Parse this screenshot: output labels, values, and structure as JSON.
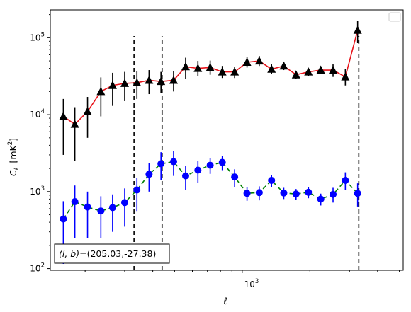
{
  "chart_data": {
    "type": "scatter",
    "xlabel": "ℓ",
    "ylabel_main": "C",
    "ylabel_sub": "ℓ",
    "ylabel_units": "[mK",
    "ylabel_sup": "2",
    "ylabel_close": "]",
    "xscale": "log",
    "yscale": "log",
    "xlim": [
      140,
      5200
    ],
    "ylim": [
      95,
      230000
    ],
    "xtick_label": "10",
    "xtick_label_exp": "3",
    "ytick_labels": [
      {
        "value": 100,
        "base": "10",
        "exp": "2"
      },
      {
        "value": 1000,
        "base": "10",
        "exp": "3"
      },
      {
        "value": 10000,
        "base": "10",
        "exp": "4"
      },
      {
        "value": 100000,
        "base": "10",
        "exp": "5"
      }
    ],
    "legend": {
      "placement": "top-right",
      "entries": []
    },
    "annotation": {
      "prefix": "(l, b)",
      "value": "=(205.03,-27.38)"
    },
    "vlines": {
      "x": [
        330,
        440,
        3300
      ],
      "y_range": [
        95,
        105000
      ],
      "style": "dashed",
      "color": "#000000"
    },
    "series": [
      {
        "marker": "triangle",
        "color": "#000000",
        "line_color": "#e8131a",
        "line_style": "solid",
        "points": [
          {
            "x": 160,
            "y": 9500,
            "lo": 3000,
            "hi": 16000
          },
          {
            "x": 180,
            "y": 7500,
            "lo": 2500,
            "hi": 12500
          },
          {
            "x": 205,
            "y": 11000,
            "lo": 5000,
            "hi": 17000
          },
          {
            "x": 235,
            "y": 20000,
            "lo": 9500,
            "hi": 30500
          },
          {
            "x": 265,
            "y": 24000,
            "lo": 13000,
            "hi": 35000
          },
          {
            "x": 300,
            "y": 25500,
            "lo": 15000,
            "hi": 36000
          },
          {
            "x": 340,
            "y": 26000,
            "lo": 16000,
            "hi": 37000
          },
          {
            "x": 385,
            "y": 28000,
            "lo": 18500,
            "hi": 38000
          },
          {
            "x": 435,
            "y": 27000,
            "lo": 19000,
            "hi": 36000
          },
          {
            "x": 495,
            "y": 28000,
            "lo": 20000,
            "hi": 36500
          },
          {
            "x": 560,
            "y": 42000,
            "lo": 29000,
            "hi": 55000
          },
          {
            "x": 635,
            "y": 40000,
            "lo": 32000,
            "hi": 50000
          },
          {
            "x": 720,
            "y": 41000,
            "lo": 33000,
            "hi": 50500
          },
          {
            "x": 815,
            "y": 36000,
            "lo": 30000,
            "hi": 43000
          },
          {
            "x": 925,
            "y": 36000,
            "lo": 30000,
            "hi": 42000
          },
          {
            "x": 1050,
            "y": 48000,
            "lo": 41000,
            "hi": 56000
          },
          {
            "x": 1190,
            "y": 50000,
            "lo": 43000,
            "hi": 58000
          },
          {
            "x": 1350,
            "y": 39000,
            "lo": 34000,
            "hi": 45000
          },
          {
            "x": 1530,
            "y": 43000,
            "lo": 38000,
            "hi": 49000
          },
          {
            "x": 1735,
            "y": 33000,
            "lo": 29000,
            "hi": 37000
          },
          {
            "x": 1970,
            "y": 36000,
            "lo": 32000,
            "hi": 40000
          },
          {
            "x": 2235,
            "y": 38000,
            "lo": 33500,
            "hi": 42500
          },
          {
            "x": 2535,
            "y": 38000,
            "lo": 31000,
            "hi": 45000
          },
          {
            "x": 2875,
            "y": 31000,
            "lo": 24000,
            "hi": 39000
          },
          {
            "x": 3260,
            "y": 125000,
            "lo": 85000,
            "hi": 165000
          }
        ]
      },
      {
        "marker": "circle",
        "color": "#0000ff",
        "line_color": "#008000",
        "line_style": "dashed",
        "points": [
          {
            "x": 160,
            "y": 440,
            "lo": 115,
            "hi": 750
          },
          {
            "x": 180,
            "y": 740,
            "lo": 250,
            "hi": 1200
          },
          {
            "x": 205,
            "y": 630,
            "lo": 250,
            "hi": 1000
          },
          {
            "x": 235,
            "y": 560,
            "lo": 250,
            "hi": 870
          },
          {
            "x": 265,
            "y": 620,
            "lo": 300,
            "hi": 920
          },
          {
            "x": 300,
            "y": 720,
            "lo": 350,
            "hi": 1100
          },
          {
            "x": 340,
            "y": 1050,
            "lo": 560,
            "hi": 1520
          },
          {
            "x": 385,
            "y": 1680,
            "lo": 1000,
            "hi": 2350
          },
          {
            "x": 435,
            "y": 2300,
            "lo": 1400,
            "hi": 3250
          },
          {
            "x": 495,
            "y": 2450,
            "lo": 1600,
            "hi": 3400
          },
          {
            "x": 560,
            "y": 1600,
            "lo": 1050,
            "hi": 2150
          },
          {
            "x": 635,
            "y": 1900,
            "lo": 1300,
            "hi": 2500
          },
          {
            "x": 720,
            "y": 2200,
            "lo": 1700,
            "hi": 2750
          },
          {
            "x": 815,
            "y": 2400,
            "lo": 1900,
            "hi": 2900
          },
          {
            "x": 925,
            "y": 1550,
            "lo": 1150,
            "hi": 1950
          },
          {
            "x": 1050,
            "y": 950,
            "lo": 760,
            "hi": 1150
          },
          {
            "x": 1190,
            "y": 970,
            "lo": 770,
            "hi": 1170
          },
          {
            "x": 1350,
            "y": 1400,
            "lo": 1150,
            "hi": 1650
          },
          {
            "x": 1530,
            "y": 960,
            "lo": 800,
            "hi": 1120
          },
          {
            "x": 1735,
            "y": 930,
            "lo": 780,
            "hi": 1080
          },
          {
            "x": 1970,
            "y": 980,
            "lo": 820,
            "hi": 1140
          },
          {
            "x": 2235,
            "y": 800,
            "lo": 660,
            "hi": 940
          },
          {
            "x": 2535,
            "y": 920,
            "lo": 720,
            "hi": 1120
          },
          {
            "x": 2875,
            "y": 1400,
            "lo": 1050,
            "hi": 1780
          },
          {
            "x": 3260,
            "y": 950,
            "lo": 640,
            "hi": 1280
          }
        ]
      }
    ]
  }
}
